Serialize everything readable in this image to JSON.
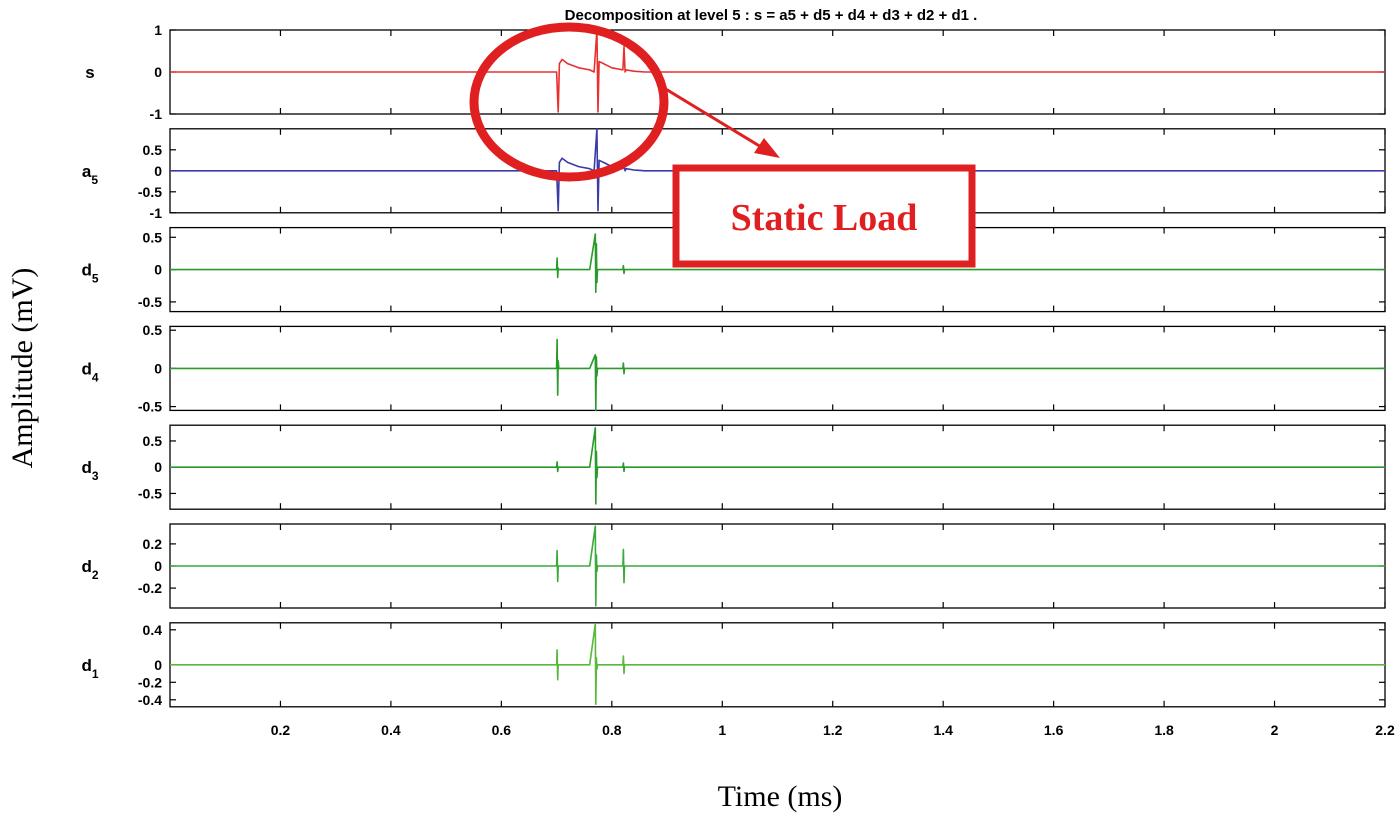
{
  "chart_data": {
    "type": "line",
    "title": "Decomposition at level 5 : s = a5 + d5 + d4 + d3 + d2 + d1 .",
    "xlabel": "Time (ms)",
    "ylabel": "Amplitude (mV)",
    "xlim": [
      0,
      2.2
    ],
    "xticks": [
      "0.2",
      "0.4",
      "0.6",
      "0.8",
      "1",
      "1.2",
      "1.4",
      "1.6",
      "1.8",
      "2",
      "2.2"
    ],
    "grid": false,
    "panels": [
      {
        "name": "s",
        "sub": "",
        "color": "#e83030",
        "ylim": [
          -1,
          1
        ],
        "yticks": [
          "1",
          "0",
          "-1"
        ],
        "yticks_values": [
          1,
          0,
          -1
        ],
        "series": {
          "x": [
            0,
            0.7,
            0.703,
            0.705,
            0.71,
            0.72,
            0.74,
            0.76,
            0.768,
            0.773,
            0.775,
            0.777,
            0.785,
            0.8,
            0.82,
            0.822,
            0.824,
            0.826,
            0.84,
            0.86,
            2.2
          ],
          "y": [
            0,
            0,
            -0.95,
            0.2,
            0.3,
            0.2,
            0.1,
            0.05,
            0.0,
            1.0,
            -0.95,
            0.25,
            0.2,
            0.1,
            0.05,
            0.6,
            0.0,
            0.05,
            0.02,
            0,
            0
          ]
        }
      },
      {
        "name": "a",
        "sub": "5",
        "color": "#3a3aa8",
        "ylim": [
          -1,
          1
        ],
        "yticks": [
          "0.5",
          "0",
          "-0.5",
          "-1"
        ],
        "yticks_values": [
          0.5,
          0,
          -0.5,
          -1
        ],
        "series": {
          "x": [
            0,
            0.7,
            0.703,
            0.705,
            0.71,
            0.72,
            0.74,
            0.76,
            0.768,
            0.773,
            0.775,
            0.777,
            0.785,
            0.8,
            0.82,
            0.822,
            0.824,
            0.826,
            0.84,
            0.86,
            2.2
          ],
          "y": [
            0,
            0,
            -0.95,
            0.2,
            0.3,
            0.2,
            0.1,
            0.05,
            0.0,
            1.0,
            -0.95,
            0.25,
            0.2,
            0.1,
            0.05,
            0.15,
            0.0,
            0.05,
            0.02,
            0,
            0
          ]
        }
      },
      {
        "name": "d",
        "sub": "5",
        "color": "#2a9a2a",
        "ylim": [
          -0.65,
          0.65
        ],
        "yticks": [
          "0.5",
          "0",
          "-0.5"
        ],
        "yticks_values": [
          0.5,
          0,
          -0.5
        ],
        "series": {
          "x": [
            0,
            0.7,
            0.701,
            0.702,
            0.703,
            0.704,
            0.76,
            0.77,
            0.771,
            0.772,
            0.773,
            0.774,
            0.82,
            0.821,
            0.822,
            0.823,
            2.2
          ],
          "y": [
            0,
            0,
            0.18,
            -0.12,
            0.02,
            0,
            0,
            0.55,
            -0.35,
            0.4,
            -0.2,
            0,
            0,
            0.06,
            -0.06,
            0,
            0
          ]
        }
      },
      {
        "name": "d",
        "sub": "4",
        "color": "#2a9a2a",
        "ylim": [
          -0.55,
          0.55
        ],
        "yticks": [
          "0.5",
          "0",
          "-0.5"
        ],
        "yticks_values": [
          0.5,
          0,
          -0.5
        ],
        "series": {
          "x": [
            0,
            0.7,
            0.701,
            0.702,
            0.703,
            0.704,
            0.76,
            0.77,
            0.771,
            0.772,
            0.773,
            0.774,
            0.82,
            0.821,
            0.822,
            0.823,
            2.2
          ],
          "y": [
            0,
            0,
            0.38,
            -0.35,
            0.1,
            0,
            0,
            0.18,
            -0.55,
            0.15,
            -0.1,
            0,
            0,
            0.07,
            -0.07,
            0,
            0
          ]
        }
      },
      {
        "name": "d",
        "sub": "3",
        "color": "#2a9a2a",
        "ylim": [
          -0.8,
          0.8
        ],
        "yticks": [
          "0.5",
          "0",
          "-0.5"
        ],
        "yticks_values": [
          0.5,
          0,
          -0.5
        ],
        "series": {
          "x": [
            0,
            0.7,
            0.701,
            0.702,
            0.703,
            0.76,
            0.77,
            0.771,
            0.772,
            0.773,
            0.774,
            0.82,
            0.821,
            0.822,
            0.823,
            2.2
          ],
          "y": [
            0,
            0,
            0.1,
            -0.08,
            0,
            0,
            0.75,
            -0.7,
            0.3,
            -0.2,
            0,
            0,
            0.08,
            -0.08,
            0,
            0
          ]
        }
      },
      {
        "name": "d",
        "sub": "2",
        "color": "#3aaa3a",
        "ylim": [
          -0.38,
          0.38
        ],
        "yticks": [
          "0.2",
          "0",
          "-0.2"
        ],
        "yticks_values": [
          0.2,
          0,
          -0.2
        ],
        "series": {
          "x": [
            0,
            0.7,
            0.701,
            0.702,
            0.703,
            0.76,
            0.77,
            0.771,
            0.772,
            0.773,
            0.774,
            0.82,
            0.821,
            0.822,
            0.823,
            2.2
          ],
          "y": [
            0,
            0,
            0.14,
            -0.14,
            0,
            0,
            0.36,
            -0.36,
            0.1,
            -0.05,
            0,
            0,
            0.15,
            -0.15,
            0,
            0
          ]
        }
      },
      {
        "name": "d",
        "sub": "1",
        "color": "#5ab83a",
        "ylim": [
          -0.48,
          0.48
        ],
        "yticks": [
          "0.4",
          "0",
          "-0.2",
          "-0.4"
        ],
        "yticks_values": [
          0.4,
          0,
          -0.2,
          -0.4
        ],
        "series": {
          "x": [
            0,
            0.7,
            0.701,
            0.702,
            0.703,
            0.76,
            0.77,
            0.771,
            0.772,
            0.773,
            0.774,
            0.82,
            0.821,
            0.822,
            0.823,
            2.2
          ],
          "y": [
            0,
            0,
            0.17,
            -0.17,
            0,
            0,
            0.47,
            -0.45,
            0.08,
            -0.05,
            0,
            0,
            0.1,
            -0.1,
            0,
            0
          ]
        }
      }
    ],
    "annotations": [
      {
        "text": "Static Load",
        "color": "#e02020"
      }
    ]
  }
}
